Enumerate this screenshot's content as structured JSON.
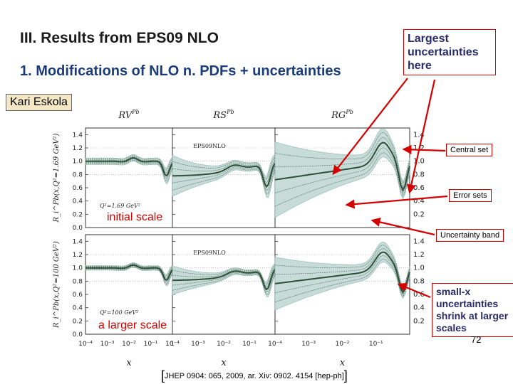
{
  "slide": {
    "title": "III. Results from EPS09 NLO",
    "subtitle": "1. Modifications of NLO n. PDFs + uncertainties",
    "author": "Kari Eskola",
    "page_number": "72",
    "reference": "JHEP 0904: 065, 2009, ar. Xiv: 0902. 4154 [hep-ph]"
  },
  "callouts": {
    "largest": "Largest uncertainties here",
    "central": "Central set",
    "error": "Error sets",
    "band": "Uncertainty band",
    "smallx": "small-x uncertainties shrink at larger scales"
  },
  "labels": {
    "initial_scale": "initial scale",
    "larger_scale": "a larger scale"
  },
  "colors": {
    "band": "#c7dcd9",
    "central": "#2f4e39",
    "accent": "#d40000"
  },
  "figure": {
    "panel_titles": [
      "R_V^Pb",
      "R_S^Pb",
      "R_G^Pb"
    ],
    "eps_label": "EPS09NLO",
    "row_scales": [
      "Q²=1.69 GeV²",
      "Q²=100 GeV²"
    ],
    "y_axis_labels": [
      "R_i^Pb(x,Q²=1.69 GeV²)",
      "R_i^Pb(x,Q²=100 GeV²)"
    ],
    "x_axis_label": "x",
    "y_ticks": [
      "0.0",
      "0.2",
      "0.4",
      "0.6",
      "0.8",
      "1.0",
      "1.2",
      "1.4"
    ],
    "y_ticks_right": [
      "0.2",
      "0.4",
      "0.6",
      "0.8",
      "1.0",
      "1.2",
      "1.4"
    ],
    "x_tick_labels": [
      "10⁻⁴",
      "10⁻³",
      "10⁻²",
      "10⁻¹",
      "1"
    ]
  }
}
